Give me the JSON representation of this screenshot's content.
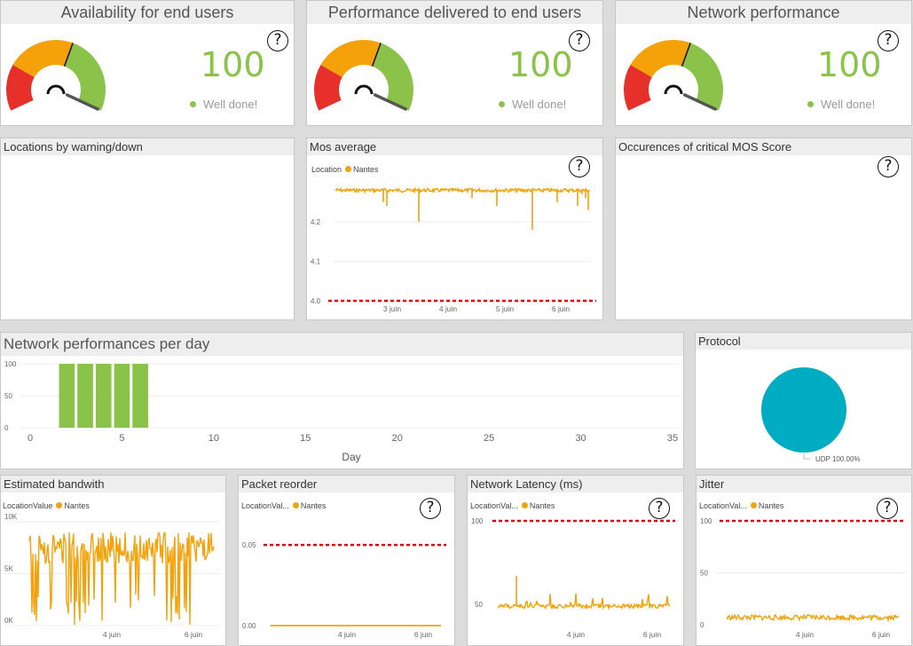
{
  "colors": {
    "accent_green": "#8bc34a",
    "gauge_red": "#e8302a",
    "gauge_orange": "#f5a20a",
    "series_orange": "#f5a20a",
    "threshold_red": "#e8000f",
    "pie_teal": "#00acc1"
  },
  "kpis": [
    {
      "title": "Availability for end users",
      "value": "100",
      "status": "Well done!",
      "help": "?",
      "needle": 1.0
    },
    {
      "title": "Performance delivered to end users",
      "value": "100",
      "status": "Well done!",
      "help": "?",
      "needle": 1.0
    },
    {
      "title": "Network performance",
      "value": "100",
      "status": "Well done!",
      "help": "?",
      "needle": 1.0
    }
  ],
  "tiles": {
    "locations": {
      "title": "Locations by warning/down"
    },
    "mos": {
      "title": "Mos average",
      "help": "?",
      "legend_label": "Location",
      "legend_series": "Nantes"
    },
    "critical_mos": {
      "title": "Occurences of critical MOS Score",
      "help": "?"
    },
    "netperf_day": {
      "title": "Network performances per day",
      "xlabel": "Day"
    },
    "protocol": {
      "title": "Protocol",
      "slice_label": "UDP 100.00%"
    },
    "bandwidth": {
      "title": "Estimated bandwith",
      "legend_label": "LocationValue",
      "legend_series": "Nantes"
    },
    "reorder": {
      "title": "Packet reorder",
      "help": "?",
      "legend_label": "LocationVal...",
      "legend_series": "Nantes"
    },
    "latency": {
      "title": "Network Latency (ms)",
      "help": "?",
      "legend_label": "LocationVal...",
      "legend_series": "Nantes"
    },
    "jitter": {
      "title": "Jitter",
      "help": "?",
      "legend_label": "LocationVal...",
      "legend_series": "Nantes"
    }
  },
  "chart_data": [
    {
      "id": "mos",
      "type": "line",
      "title": "Mos average",
      "y_ticks": [
        "4.0",
        "4.1",
        "4.2"
      ],
      "x_ticks": [
        "3 juin",
        "4 juin",
        "5 juin",
        "6 juin"
      ],
      "ylim": [
        4.0,
        4.29
      ],
      "threshold": 4.0,
      "series": [
        {
          "name": "Nantes",
          "baseline": 4.28,
          "dips": [
            4.25,
            4.24,
            4.2,
            4.26,
            4.24,
            4.18,
            4.25,
            4.24,
            4.27,
            4.26,
            4.23
          ]
        }
      ]
    },
    {
      "id": "netperf_day",
      "type": "bar",
      "title": "Network performances per day",
      "xlabel": "Day",
      "y_ticks": [
        "0",
        "50",
        "100"
      ],
      "x_ticks": [
        "0",
        "5",
        "10",
        "15",
        "20",
        "25",
        "30",
        "35"
      ],
      "xlim": [
        0,
        35
      ],
      "ylim": [
        0,
        100
      ],
      "x": [
        2,
        3,
        4,
        5,
        6
      ],
      "values": [
        100,
        100,
        100,
        100,
        100
      ]
    },
    {
      "id": "protocol",
      "type": "pie",
      "slices": [
        {
          "label": "UDP",
          "percent": 100.0
        }
      ]
    },
    {
      "id": "bandwidth",
      "type": "line",
      "title": "Estimated bandwith",
      "y_ticks": [
        "0K",
        "5K",
        "10K"
      ],
      "x_ticks": [
        "4 juin",
        "6 juin"
      ],
      "ylim": [
        0,
        10000
      ],
      "series": [
        {
          "name": "Nantes",
          "typical_min": 6000,
          "typical_max": 9000
        }
      ]
    },
    {
      "id": "reorder",
      "type": "line",
      "title": "Packet reorder",
      "y_ticks": [
        "0.00",
        "0.05"
      ],
      "x_ticks": [
        "4 juin",
        "6 juin"
      ],
      "ylim": [
        0,
        0.06
      ],
      "threshold": 0.05,
      "series": [
        {
          "name": "Nantes",
          "value": 0.0
        }
      ]
    },
    {
      "id": "latency",
      "type": "line",
      "title": "Network Latency (ms)",
      "y_ticks": [
        "50",
        "100"
      ],
      "x_ticks": [
        "4 juin",
        "6 juin"
      ],
      "ylim": [
        45,
        100
      ],
      "threshold": 100,
      "series": [
        {
          "name": "Nantes",
          "typical": 49,
          "peak": 67
        }
      ]
    },
    {
      "id": "jitter",
      "type": "line",
      "title": "Jitter",
      "y_ticks": [
        "0",
        "50",
        "100"
      ],
      "x_ticks": [
        "4 juin",
        "6 juin"
      ],
      "ylim": [
        0,
        100
      ],
      "threshold": 100,
      "series": [
        {
          "name": "Nantes",
          "typical": 7
        }
      ]
    }
  ]
}
